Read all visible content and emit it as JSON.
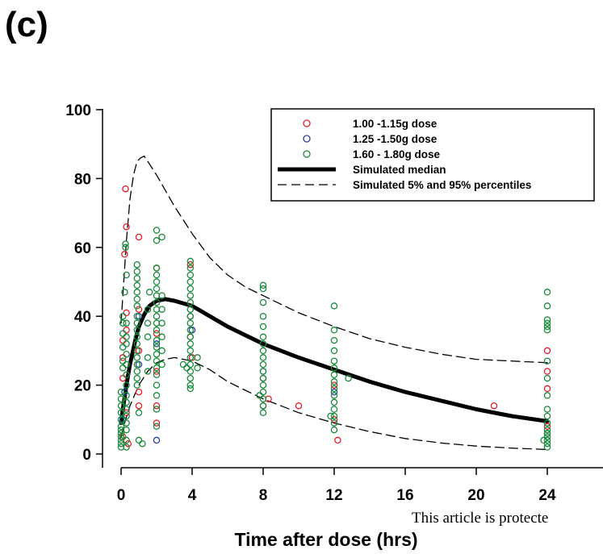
{
  "panel_label": "(c)",
  "watermark": "This article is protecte",
  "chart_data": {
    "type": "scatter",
    "title": "",
    "xlabel": "Time after dose (hrs)",
    "ylabel": "",
    "xlim": [
      -1,
      27
    ],
    "ylim": [
      -4,
      100
    ],
    "xticks": [
      0,
      4,
      8,
      12,
      16,
      20,
      24
    ],
    "yticks": [
      0,
      20,
      40,
      60,
      80,
      100
    ],
    "legend_position": "top-right",
    "legend": [
      {
        "label": "1.00 -1.15g dose",
        "marker": "circle",
        "color": "#e0202a"
      },
      {
        "label": "1.25 -1.50g dose",
        "marker": "circle",
        "color": "#2a3f9a"
      },
      {
        "label": "1.60 - 1.80g dose",
        "marker": "circle",
        "color": "#1a8a3c"
      },
      {
        "label": "Simulated median",
        "line": "solid-thick",
        "color": "#000000"
      },
      {
        "label": "Simulated 5% and 95% percentiles",
        "line": "dashed",
        "color": "#000000"
      }
    ],
    "series": [
      {
        "name": "1.00 -1.15g dose",
        "kind": "points",
        "color": "#e0202a",
        "points": [
          [
            0.1,
            5
          ],
          [
            0.1,
            28
          ],
          [
            0.1,
            33
          ],
          [
            0.1,
            22
          ],
          [
            0.2,
            58
          ],
          [
            0.25,
            77
          ],
          [
            0.3,
            66
          ],
          [
            0.3,
            41
          ],
          [
            0.3,
            36
          ],
          [
            0.3,
            12
          ],
          [
            0.4,
            3
          ],
          [
            1,
            63
          ],
          [
            1,
            42
          ],
          [
            1,
            30
          ],
          [
            1,
            18
          ],
          [
            1,
            14
          ],
          [
            2,
            54
          ],
          [
            2,
            35
          ],
          [
            2,
            24
          ],
          [
            2,
            14
          ],
          [
            2,
            9
          ],
          [
            3.9,
            55
          ],
          [
            3.9,
            40
          ],
          [
            3.9,
            34
          ],
          [
            4,
            28
          ],
          [
            8,
            22
          ],
          [
            8,
            14
          ],
          [
            8.3,
            16
          ],
          [
            10,
            14
          ],
          [
            12,
            20
          ],
          [
            12,
            10
          ],
          [
            12.2,
            4
          ],
          [
            21,
            14
          ],
          [
            24,
            30
          ],
          [
            24,
            24
          ],
          [
            24,
            19
          ],
          [
            24,
            8
          ]
        ]
      },
      {
        "name": "1.25 -1.50g dose",
        "kind": "points",
        "color": "#2a3f9a",
        "points": [
          [
            0.1,
            10
          ],
          [
            0.2,
            18
          ],
          [
            1,
            40
          ],
          [
            1,
            26
          ],
          [
            2,
            4
          ],
          [
            2,
            32
          ],
          [
            4,
            36
          ],
          [
            8,
            24
          ],
          [
            12,
            18
          ],
          [
            24,
            6
          ]
        ]
      },
      {
        "name": "1.60 - 1.80g dose",
        "kind": "points",
        "color": "#1a8a3c",
        "points": [
          [
            0,
            2
          ],
          [
            0,
            3
          ],
          [
            0,
            4
          ],
          [
            0,
            5
          ],
          [
            0,
            6
          ],
          [
            0,
            7
          ],
          [
            0,
            8
          ],
          [
            0,
            10
          ],
          [
            0,
            12
          ],
          [
            0,
            14
          ],
          [
            0,
            16
          ],
          [
            0,
            18
          ],
          [
            0.1,
            25
          ],
          [
            0.1,
            27
          ],
          [
            0.1,
            31
          ],
          [
            0.1,
            35
          ],
          [
            0.1,
            38
          ],
          [
            0.1,
            40
          ],
          [
            0.2,
            47
          ],
          [
            0.3,
            52
          ],
          [
            0.25,
            60
          ],
          [
            0.25,
            61
          ],
          [
            0.3,
            2
          ],
          [
            0.3,
            4
          ],
          [
            0.3,
            7
          ],
          [
            0.3,
            9
          ],
          [
            0.3,
            11
          ],
          [
            0.3,
            13
          ],
          [
            0.3,
            15
          ],
          [
            0.3,
            17
          ],
          [
            0.3,
            20
          ],
          [
            0.3,
            23
          ],
          [
            0.3,
            26
          ],
          [
            0.3,
            29
          ],
          [
            0.3,
            32
          ],
          [
            0.3,
            34
          ],
          [
            0.3,
            38
          ],
          [
            0.9,
            55
          ],
          [
            0.9,
            53
          ],
          [
            0.9,
            51
          ],
          [
            0.9,
            49
          ],
          [
            0.9,
            47
          ],
          [
            0.9,
            45
          ],
          [
            0.9,
            43
          ],
          [
            0.9,
            40
          ],
          [
            0.9,
            38
          ],
          [
            0.9,
            36
          ],
          [
            0.9,
            34
          ],
          [
            0.9,
            32
          ],
          [
            0.9,
            30
          ],
          [
            0.9,
            28
          ],
          [
            0.9,
            26
          ],
          [
            0.9,
            24
          ],
          [
            0.9,
            22
          ],
          [
            0.9,
            20
          ],
          [
            1,
            12
          ],
          [
            1,
            4
          ],
          [
            1.2,
            3
          ],
          [
            1.5,
            42
          ],
          [
            1.5,
            38
          ],
          [
            1.5,
            34
          ],
          [
            1.5,
            28
          ],
          [
            1.5,
            24
          ],
          [
            1.6,
            47
          ],
          [
            2,
            65
          ],
          [
            2,
            62
          ],
          [
            2,
            54
          ],
          [
            2,
            52
          ],
          [
            2,
            50
          ],
          [
            2,
            48
          ],
          [
            2,
            46
          ],
          [
            2,
            44
          ],
          [
            2,
            42
          ],
          [
            2,
            40
          ],
          [
            2,
            38
          ],
          [
            2,
            36
          ],
          [
            2,
            33
          ],
          [
            2,
            31
          ],
          [
            2,
            29
          ],
          [
            2,
            27
          ],
          [
            2,
            25
          ],
          [
            2,
            23
          ],
          [
            2,
            20
          ],
          [
            2,
            17
          ],
          [
            2,
            13
          ],
          [
            2,
            8
          ],
          [
            2.3,
            63
          ],
          [
            2.3,
            46
          ],
          [
            2.3,
            42
          ],
          [
            2.3,
            38
          ],
          [
            2.3,
            34
          ],
          [
            2.3,
            30
          ],
          [
            2.3,
            26
          ],
          [
            3.5,
            26
          ],
          [
            3.7,
            25
          ],
          [
            3.9,
            56
          ],
          [
            3.9,
            54
          ],
          [
            3.9,
            52
          ],
          [
            3.9,
            50
          ],
          [
            3.9,
            48
          ],
          [
            3.9,
            46
          ],
          [
            3.9,
            44
          ],
          [
            3.9,
            42
          ],
          [
            3.9,
            40
          ],
          [
            3.9,
            38
          ],
          [
            3.9,
            36
          ],
          [
            3.9,
            34
          ],
          [
            3.9,
            32
          ],
          [
            3.9,
            30
          ],
          [
            3.9,
            28
          ],
          [
            3.9,
            26
          ],
          [
            3.9,
            24
          ],
          [
            3.9,
            22
          ],
          [
            3.9,
            20
          ],
          [
            3.9,
            19
          ],
          [
            4.3,
            28
          ],
          [
            4.3,
            25
          ],
          [
            7.8,
            17
          ],
          [
            8,
            49
          ],
          [
            8,
            48
          ],
          [
            8,
            44
          ],
          [
            8,
            40
          ],
          [
            8,
            37
          ],
          [
            8,
            34
          ],
          [
            8,
            32
          ],
          [
            8,
            30
          ],
          [
            8,
            28
          ],
          [
            8,
            26
          ],
          [
            8,
            24
          ],
          [
            8,
            22
          ],
          [
            8,
            20
          ],
          [
            8,
            18
          ],
          [
            8,
            16
          ],
          [
            8,
            14
          ],
          [
            8,
            12
          ],
          [
            11.8,
            11
          ],
          [
            12,
            43
          ],
          [
            12,
            36
          ],
          [
            12,
            33
          ],
          [
            12,
            30
          ],
          [
            12,
            27
          ],
          [
            12,
            25
          ],
          [
            12,
            23
          ],
          [
            12,
            21
          ],
          [
            12,
            19
          ],
          [
            12,
            17
          ],
          [
            12,
            15
          ],
          [
            12,
            13
          ],
          [
            12,
            11
          ],
          [
            12,
            9
          ],
          [
            12,
            7
          ],
          [
            12.8,
            22
          ],
          [
            23.8,
            4
          ],
          [
            24,
            47
          ],
          [
            24,
            43
          ],
          [
            24,
            39
          ],
          [
            24,
            38
          ],
          [
            24,
            37
          ],
          [
            24,
            36
          ],
          [
            24,
            27
          ],
          [
            24,
            22
          ],
          [
            24,
            17
          ],
          [
            24,
            13
          ],
          [
            24,
            11
          ],
          [
            24,
            9
          ],
          [
            24,
            7
          ],
          [
            24,
            6
          ],
          [
            24,
            5
          ],
          [
            24,
            4
          ],
          [
            24,
            3
          ],
          [
            24,
            2
          ]
        ]
      },
      {
        "name": "Simulated median",
        "kind": "line-solid",
        "color": "#000000",
        "points": [
          [
            0,
            9
          ],
          [
            0.1,
            13
          ],
          [
            0.3,
            20
          ],
          [
            0.5,
            26
          ],
          [
            0.8,
            33
          ],
          [
            1,
            37
          ],
          [
            1.3,
            40.5
          ],
          [
            1.6,
            43
          ],
          [
            2,
            44.5
          ],
          [
            2.5,
            45
          ],
          [
            3,
            44.5
          ],
          [
            4,
            43
          ],
          [
            5,
            40
          ],
          [
            6,
            37
          ],
          [
            7,
            34.5
          ],
          [
            8,
            32
          ],
          [
            10,
            28
          ],
          [
            12,
            24.5
          ],
          [
            14,
            21
          ],
          [
            16,
            18
          ],
          [
            18,
            15.5
          ],
          [
            20,
            13
          ],
          [
            22,
            11
          ],
          [
            24,
            9.5
          ]
        ]
      },
      {
        "name": "Simulated 95% percentile",
        "kind": "line-dashed",
        "color": "#000000",
        "points": [
          [
            0,
            38
          ],
          [
            0.1,
            46
          ],
          [
            0.3,
            62
          ],
          [
            0.5,
            74
          ],
          [
            0.7,
            81
          ],
          [
            0.9,
            85
          ],
          [
            1.1,
            86
          ],
          [
            1.3,
            86.5
          ],
          [
            1.5,
            85
          ],
          [
            2,
            81
          ],
          [
            3,
            72
          ],
          [
            4,
            64
          ],
          [
            5,
            57
          ],
          [
            6,
            52
          ],
          [
            7,
            48.5
          ],
          [
            8,
            46
          ],
          [
            10,
            41
          ],
          [
            12,
            37
          ],
          [
            14,
            33.5
          ],
          [
            16,
            31
          ],
          [
            18,
            29
          ],
          [
            20,
            27.5
          ],
          [
            22,
            27
          ],
          [
            24,
            26.5
          ]
        ]
      },
      {
        "name": "Simulated 5% percentile",
        "kind": "line-dashed",
        "color": "#000000",
        "points": [
          [
            0,
            5
          ],
          [
            0.2,
            9
          ],
          [
            0.5,
            14
          ],
          [
            1,
            20
          ],
          [
            1.5,
            24
          ],
          [
            2,
            26.5
          ],
          [
            2.5,
            27.5
          ],
          [
            3,
            28
          ],
          [
            4,
            27
          ],
          [
            5,
            24.5
          ],
          [
            6,
            21
          ],
          [
            7,
            18.5
          ],
          [
            8,
            16
          ],
          [
            10,
            12
          ],
          [
            12,
            9
          ],
          [
            14,
            6.5
          ],
          [
            16,
            4.5
          ],
          [
            18,
            3.2
          ],
          [
            20,
            2.3
          ],
          [
            22,
            1.7
          ],
          [
            24,
            1.3
          ]
        ]
      }
    ]
  }
}
